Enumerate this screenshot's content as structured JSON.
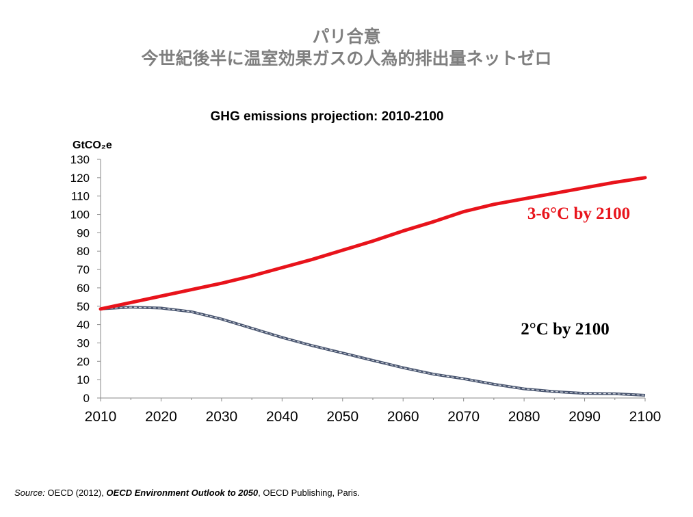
{
  "slide": {
    "title_line1": "パリ合意",
    "title_line2": "今世紀後半に温室効果ガスの人為的排出量ネットゼロ"
  },
  "chart_data": {
    "type": "line",
    "title": "GHG emissions projection:  2010-2100",
    "ylabel": "GtCO₂e",
    "ylim": [
      0,
      130
    ],
    "yticks": [
      0,
      10,
      20,
      30,
      40,
      50,
      60,
      70,
      80,
      90,
      100,
      110,
      120,
      130
    ],
    "xlim": [
      2010,
      2100
    ],
    "xticks": [
      2010,
      2020,
      2030,
      2040,
      2050,
      2060,
      2070,
      2080,
      2090,
      2100
    ],
    "grid": false,
    "series": [
      {
        "label": "3-6°C by 2100",
        "color": "#e8131b",
        "x": [
          2010,
          2015,
          2020,
          2025,
          2030,
          2035,
          2040,
          2045,
          2050,
          2055,
          2060,
          2065,
          2070,
          2075,
          2080,
          2085,
          2090,
          2095,
          2100
        ],
        "y": [
          48.5,
          52,
          55.5,
          59,
          62.5,
          66.5,
          71,
          75.5,
          80.5,
          85.5,
          91,
          96,
          101.5,
          105.5,
          108.5,
          111.5,
          114.5,
          117.5,
          120
        ]
      },
      {
        "label": "2°C by 2100",
        "color": "#4a5670",
        "x": [
          2010,
          2015,
          2020,
          2025,
          2030,
          2035,
          2040,
          2045,
          2050,
          2055,
          2060,
          2065,
          2070,
          2075,
          2080,
          2085,
          2090,
          2095,
          2100
        ],
        "y": [
          48.5,
          49.5,
          49,
          47,
          43,
          38,
          33,
          28.5,
          24.5,
          20.5,
          16.5,
          13,
          10.5,
          7.5,
          5,
          3.5,
          2.5,
          2.3,
          1.5
        ]
      }
    ]
  },
  "source": {
    "label": "Source:",
    "pre": " OECD (2012), ",
    "title": "OECD Environment Outlook to 2050",
    "post": ", OECD Publishing, Paris."
  }
}
